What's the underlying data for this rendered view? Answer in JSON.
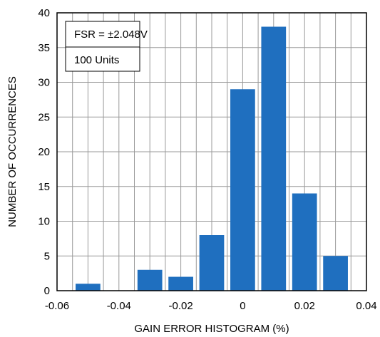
{
  "chart_data": {
    "type": "bar",
    "xlabel": "GAIN ERROR HISTOGRAM (%)",
    "ylabel": "NUMBER OF OCCURRENCES",
    "xlim": [
      -0.06,
      0.04
    ],
    "ylim": [
      0,
      40
    ],
    "xticks": [
      "-0.06",
      "-0.04",
      "-0.02",
      "0",
      "0.02",
      "0.04"
    ],
    "xtick_values": [
      -0.06,
      -0.04,
      -0.02,
      0,
      0.02,
      0.04
    ],
    "yticks": [
      "0",
      "5",
      "10",
      "15",
      "20",
      "25",
      "30",
      "35",
      "40"
    ],
    "ytick_values": [
      0,
      5,
      10,
      15,
      20,
      25,
      30,
      35,
      40
    ],
    "grid": true,
    "x_minor_step": 0.005,
    "bar_width": 0.008,
    "bar_color": "#1f6fbf",
    "bins": [
      {
        "x": -0.05,
        "value": 1
      },
      {
        "x": -0.04,
        "value": 0
      },
      {
        "x": -0.03,
        "value": 3
      },
      {
        "x": -0.02,
        "value": 2
      },
      {
        "x": -0.01,
        "value": 8
      },
      {
        "x": 0.0,
        "value": 29
      },
      {
        "x": 0.01,
        "value": 38
      },
      {
        "x": 0.02,
        "value": 14
      },
      {
        "x": 0.03,
        "value": 5
      }
    ],
    "annotations": [
      "FSR = ±2.048V",
      "100 Units"
    ]
  }
}
